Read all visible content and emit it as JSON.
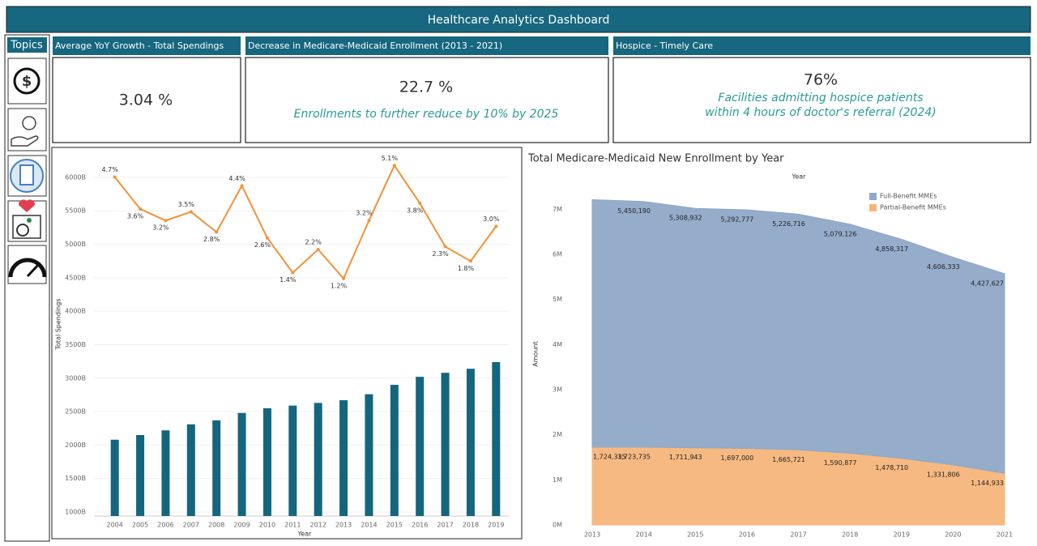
{
  "header": {
    "title": "Healthcare Analytics Dashboard"
  },
  "topics": {
    "title": "Topics"
  },
  "kpis": [
    {
      "title": "Average YoY Growth - Total Spendings",
      "value": "3.04 %"
    },
    {
      "title": "Decrease in Medicare-Medicaid Enrollment  (2013 - 2021)",
      "value": "22.7 %",
      "note": [
        "Enrollments to further reduce by 10% by 2025"
      ]
    },
    {
      "title": "Hospice - Timely Care",
      "value": "76%",
      "note": [
        "Facilities admitting hospice patients",
        "within 4 hours of doctor's referral (2024)"
      ]
    }
  ],
  "chart_data": [
    {
      "type": "bar_line",
      "x_label": "Year",
      "y_label": "Total Spendings",
      "categories": [
        "2004",
        "2005",
        "2006",
        "2007",
        "2008",
        "2009",
        "2010",
        "2011",
        "2012",
        "2013",
        "2014",
        "2015",
        "2016",
        "2017",
        "2018",
        "2019"
      ],
      "series": [
        {
          "type": "bar",
          "color": "#14667e",
          "values": [
            2080,
            2150,
            2220,
            2310,
            2370,
            2480,
            2550,
            2590,
            2630,
            2670,
            2760,
            2900,
            3020,
            3080,
            3140,
            3240
          ]
        },
        {
          "type": "line",
          "axis": "y2",
          "color": "#f0923a",
          "values": [
            4.7,
            3.6,
            3.2,
            3.5,
            2.8,
            4.4,
            2.6,
            1.4,
            2.2,
            1.2,
            3.2,
            5.1,
            3.8,
            2.3,
            1.8,
            3.0
          ],
          "value_labels": [
            "4.7%",
            "3.6%",
            "3.2%",
            "3.5%",
            "2.8%",
            "4.4%",
            "2.6%",
            "1.4%",
            "2.2%",
            "1.2%",
            "3.2%",
            "5.1%",
            "3.8%",
            "2.3%",
            "1.8%",
            "3.0%"
          ]
        }
      ],
      "ylim": [
        940,
        6350
      ],
      "yticks": [
        {
          "value": 1000,
          "label": "1000B"
        },
        {
          "value": 1500,
          "label": "1500B"
        },
        {
          "value": 2000,
          "label": "2000B"
        },
        {
          "value": 2500,
          "label": "2500B"
        },
        {
          "value": 3000,
          "label": "3000B"
        },
        {
          "value": 3500,
          "label": "3500B"
        },
        {
          "value": 4000,
          "label": "4000B"
        },
        {
          "value": 4500,
          "label": "4500B"
        },
        {
          "value": 5000,
          "label": "5000B"
        },
        {
          "value": 5500,
          "label": "5500B"
        },
        {
          "value": 6000,
          "label": "6000B"
        }
      ],
      "y2lim": [
        -7.0,
        5.5
      ],
      "grid": true
    },
    {
      "type": "stacked_area",
      "title": "Total Medicare-Medicaid New Enrollment by Year",
      "x_label": "Year",
      "y_label": "Amount",
      "categories": [
        "2013",
        "2014",
        "2015",
        "2016",
        "2017",
        "2018",
        "2019",
        "2020",
        "2021"
      ],
      "series": [
        {
          "name": "Partial-Benefit MMEs",
          "color": "#f5b57a",
          "values": [
            1724335,
            1723735,
            1711943,
            1697000,
            1665721,
            1590877,
            1478710,
            1331806,
            1144933
          ],
          "value_labels": [
            "1,724,335",
            "1,723,735",
            "1,711,943",
            "1,697,000",
            "1,665,721",
            "1,590,877",
            "1,478,710",
            "1,331,806",
            "1,144,933"
          ]
        },
        {
          "name": "Full-Benefit MMEs",
          "color": "#8fa8c8",
          "values": [
            5490000,
            5450190,
            5308932,
            5292777,
            5226716,
            5079126,
            4858317,
            4606333,
            4427627
          ],
          "value_labels": [
            null,
            "5,450,190",
            "5,308,932",
            "5,292,777",
            "5,226,716",
            "5,079,126",
            "4,858,317",
            "4,606,333",
            "4,427,627"
          ]
        }
      ],
      "ylim": [
        0,
        7600000
      ],
      "yticks": [
        {
          "value": 0,
          "label": "0M"
        },
        {
          "value": 1000000,
          "label": "1M"
        },
        {
          "value": 2000000,
          "label": "2M"
        },
        {
          "value": 3000000,
          "label": "3M"
        },
        {
          "value": 4000000,
          "label": "4M"
        },
        {
          "value": 5000000,
          "label": "5M"
        },
        {
          "value": 6000000,
          "label": "6M"
        },
        {
          "value": 7000000,
          "label": "7M"
        }
      ],
      "legend": "top-right",
      "grid": false
    }
  ]
}
